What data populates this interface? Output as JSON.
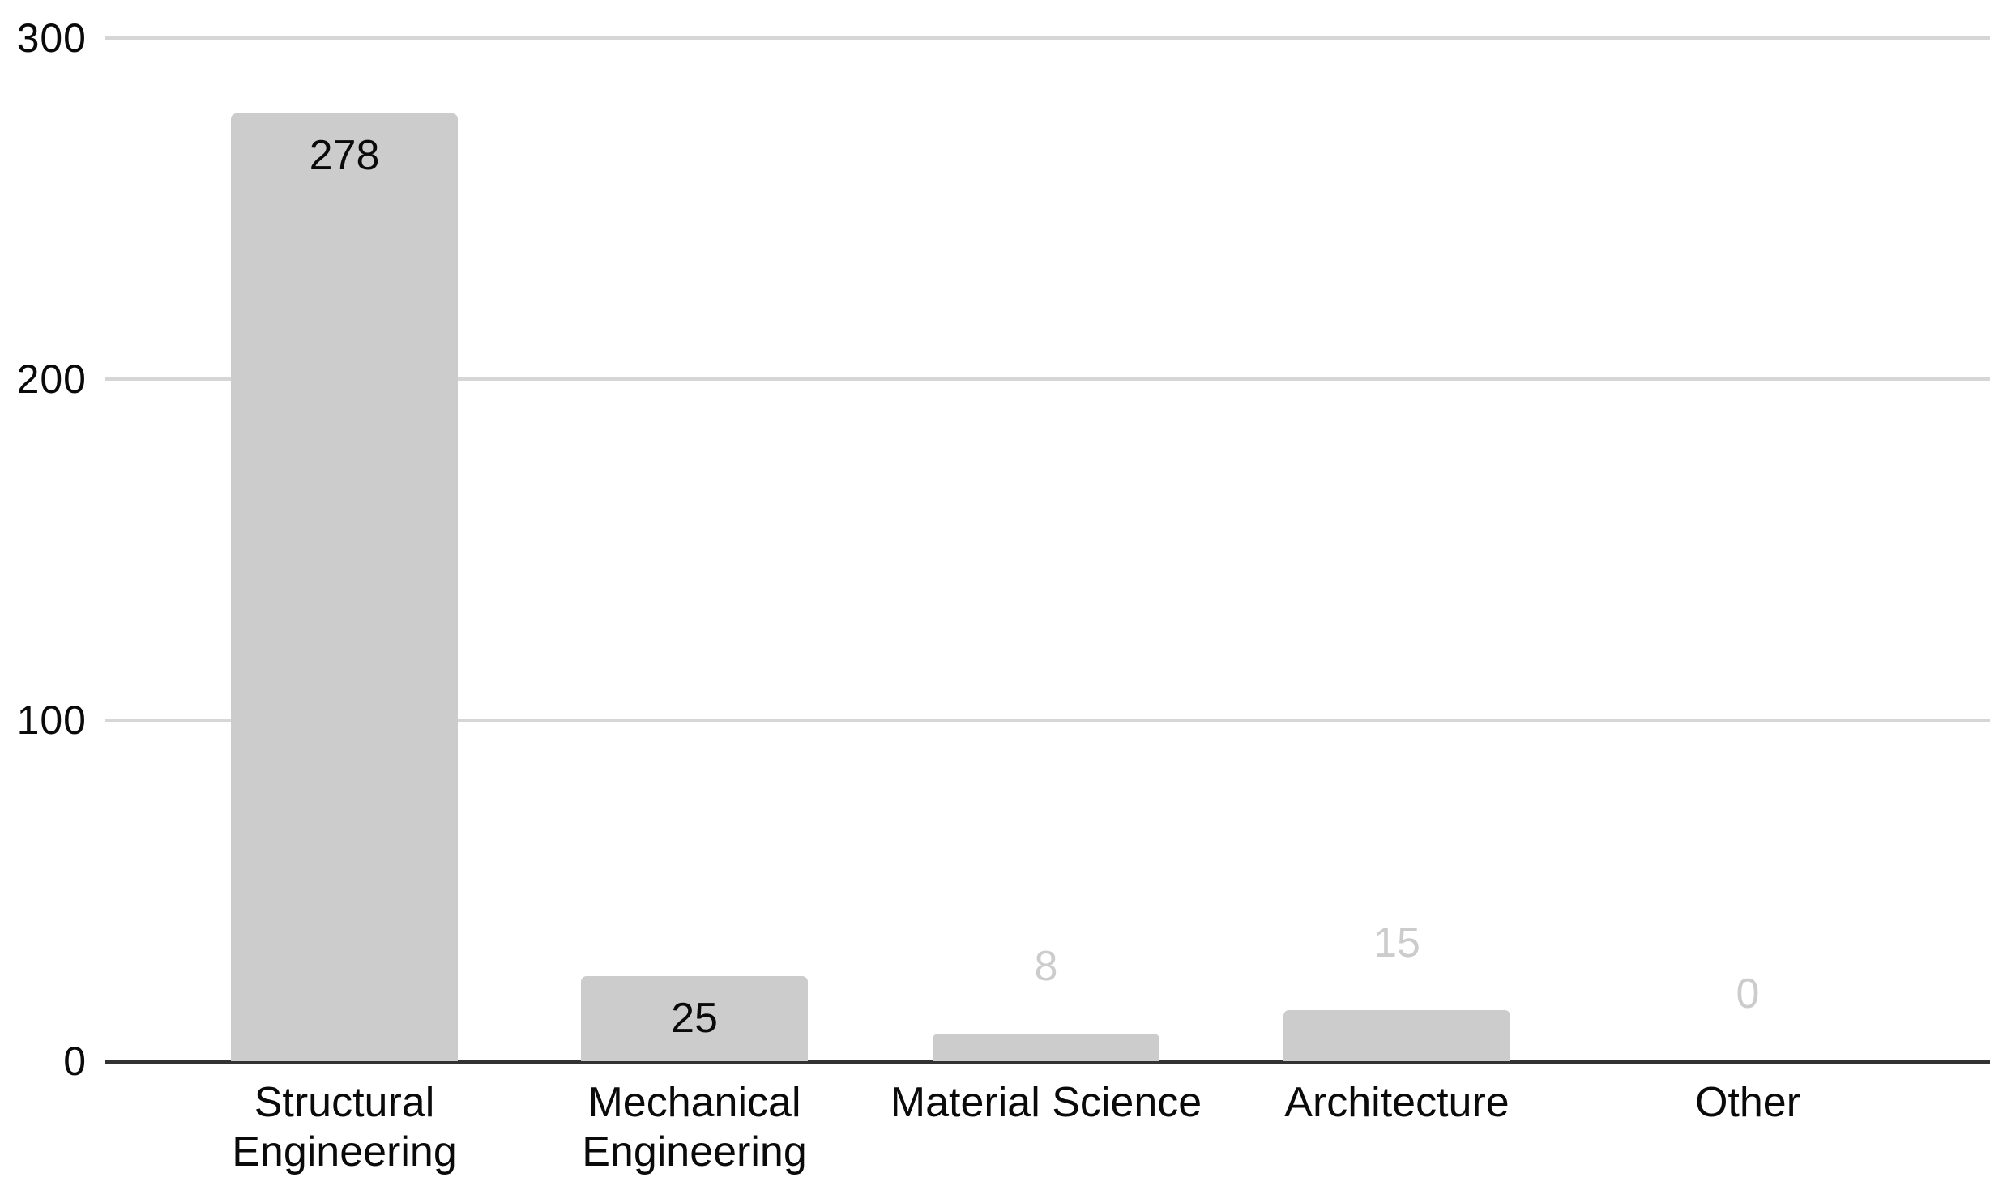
{
  "chart_data": {
    "type": "bar",
    "categories": [
      "Structural Engineering",
      "Mechanical Engineering",
      "Material Science",
      "Architecture",
      "Other"
    ],
    "values": [
      278,
      25,
      8,
      15,
      0
    ],
    "label_placement": [
      "inside",
      "inside",
      "outside",
      "outside",
      "outside"
    ],
    "yticks": [
      0,
      100,
      200,
      300
    ],
    "ylim": [
      0,
      300
    ],
    "grid": true,
    "legend": "none",
    "colors": {
      "background": "#ffffff",
      "bar": "#cccccc",
      "gridline": "#d6d6d6",
      "axis_line": "#333333",
      "tick_text": "#0a0a0a",
      "category_text": "#0a0a0a",
      "label_inside": "#0a0a0a",
      "label_outside": "#cccccc"
    }
  }
}
